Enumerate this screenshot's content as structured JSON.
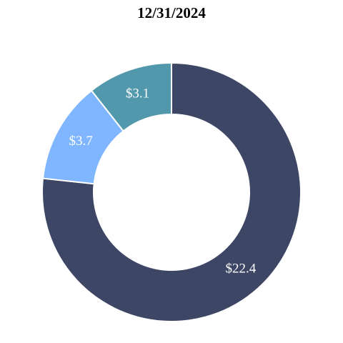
{
  "chart_data": {
    "type": "pie",
    "variant": "donut",
    "title": "12/31/2024",
    "categories": [
      "",
      "",
      ""
    ],
    "values": [
      22.4,
      3.7,
      3.1
    ],
    "labels": [
      "$22.4",
      "$3.7",
      "$3.1"
    ],
    "colors": [
      "#3e4666",
      "#7fb6ff",
      "#5198ac"
    ],
    "slice_border_color": "#ffffff",
    "start": "12 o'clock",
    "direction": "clockwise",
    "legend": "none"
  }
}
